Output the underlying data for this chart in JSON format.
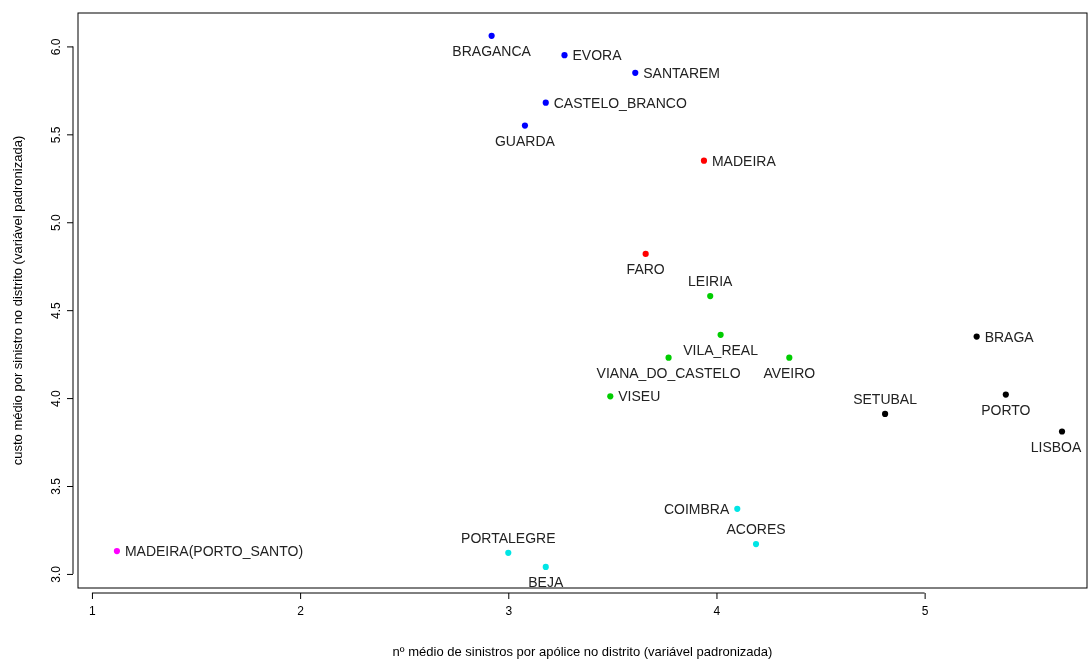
{
  "chart_data": {
    "type": "scatter",
    "xlabel": "nº médio de sinistros por apólice no distrito (variável padronizada)",
    "ylabel": "custo médio por sinistro no distrito (variável padronizada)",
    "xlim": [
      0.933,
      5.78
    ],
    "ylim": [
      2.92,
      6.19
    ],
    "xticks": [
      1,
      2,
      3,
      4,
      5
    ],
    "yticks": [
      {
        "value": 3,
        "label": "3.0"
      },
      {
        "value": 3.5,
        "label": "3.5"
      },
      {
        "value": 4,
        "label": "4.0"
      },
      {
        "value": 4.5,
        "label": "4.5"
      },
      {
        "value": 5,
        "label": "5.0"
      },
      {
        "value": 5.5,
        "label": "5.5"
      },
      {
        "value": 6,
        "label": "6.0"
      }
    ],
    "grid": false,
    "marker": "circle",
    "series": [
      {
        "color": "#0000ff",
        "x": [
          2.92,
          3.27,
          3.61,
          3.18,
          3.08
        ],
        "values": [
          6.06,
          5.95,
          5.85,
          5.68,
          5.55
        ]
      },
      {
        "color": "#ff0000",
        "x": [
          3.94,
          3.66
        ],
        "values": [
          5.35,
          4.82
        ]
      },
      {
        "color": "#00cd00",
        "x": [
          3.97,
          4.02,
          3.77,
          4.35,
          3.49
        ],
        "values": [
          4.58,
          4.36,
          4.23,
          4.23,
          4.01
        ]
      },
      {
        "color": "#000000",
        "x": [
          5.25,
          5.39,
          4.81,
          5.66
        ],
        "values": [
          4.35,
          4.02,
          3.91,
          3.81
        ]
      },
      {
        "color": "#00e5e5",
        "x": [
          4.1,
          4.19,
          3.0,
          3.18
        ],
        "values": [
          3.37,
          3.17,
          3.12,
          3.04
        ]
      },
      {
        "color": "#ff00ff",
        "x": [
          1.12
        ],
        "values": [
          3.13
        ]
      }
    ],
    "annotations": [
      {
        "text": "BRAGANCA",
        "x": 2.92,
        "y": 6.06
      },
      {
        "text": "EVORA",
        "x": 3.27,
        "y": 5.95
      },
      {
        "text": "SANTAREM",
        "x": 3.61,
        "y": 5.85
      },
      {
        "text": "CASTELO_BRANCO",
        "x": 3.18,
        "y": 5.68
      },
      {
        "text": "GUARDA",
        "x": 3.08,
        "y": 5.55
      },
      {
        "text": "MADEIRA",
        "x": 3.94,
        "y": 5.35
      },
      {
        "text": "FARO",
        "x": 3.66,
        "y": 4.82
      },
      {
        "text": "LEIRIA",
        "x": 3.97,
        "y": 4.58
      },
      {
        "text": "VILA_REAL",
        "x": 4.02,
        "y": 4.36
      },
      {
        "text": "VIANA_DO_CASTELO",
        "x": 3.77,
        "y": 4.23
      },
      {
        "text": "AVEIRO",
        "x": 4.35,
        "y": 4.23
      },
      {
        "text": "VISEU",
        "x": 3.49,
        "y": 4.01
      },
      {
        "text": "BRAGA",
        "x": 5.25,
        "y": 4.35
      },
      {
        "text": "PORTO",
        "x": 5.39,
        "y": 4.02
      },
      {
        "text": "SETUBAL",
        "x": 4.81,
        "y": 3.91
      },
      {
        "text": "LISBOA",
        "x": 5.66,
        "y": 3.81
      },
      {
        "text": "COIMBRA",
        "x": 4.1,
        "y": 3.37
      },
      {
        "text": "ACORES",
        "x": 4.19,
        "y": 3.17
      },
      {
        "text": "PORTALEGRE",
        "x": 3.0,
        "y": 3.12
      },
      {
        "text": "BEJA",
        "x": 3.18,
        "y": 3.04
      },
      {
        "text": "MADEIRA(PORTO_SANTO)",
        "x": 1.12,
        "y": 3.13
      }
    ]
  }
}
